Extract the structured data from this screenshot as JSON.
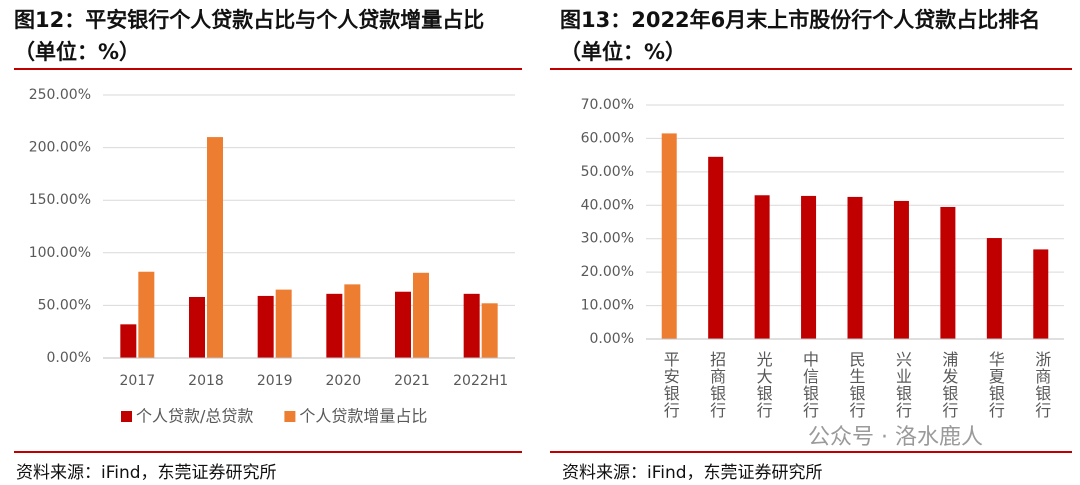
{
  "chart_data": [
    {
      "type": "bar",
      "title": "图12：平安银行个人贷款占比与个人贷款增量占比（单位：%）",
      "categories": [
        "2017",
        "2018",
        "2019",
        "2020",
        "2021",
        "2022H1"
      ],
      "series": [
        {
          "name": "个人贷款/总贷款",
          "color": "#c00000",
          "values": [
            32,
            58,
            59,
            61,
            63,
            61
          ]
        },
        {
          "name": "个人贷款增量占比",
          "color": "#ed7d31",
          "values": [
            82,
            210,
            65,
            70,
            81,
            52
          ]
        }
      ],
      "ylim": [
        0,
        250
      ],
      "yticks": [
        {
          "value": 0,
          "label": "0.00%"
        },
        {
          "value": 50,
          "label": "50.00%"
        },
        {
          "value": 100,
          "label": "100.00%"
        },
        {
          "value": 150,
          "label": "150.00%"
        },
        {
          "value": 200,
          "label": "200.00%"
        },
        {
          "value": 250,
          "label": "250.00%"
        }
      ],
      "grid": true,
      "legend": "bottom",
      "source": "资料来源：iFind，东莞证券研究所"
    },
    {
      "type": "bar",
      "title": "图13：2022年6月末上市股份行个人贷款占比排名（单位：%）",
      "categories": [
        "平安银行",
        "招商银行",
        "光大银行",
        "中信银行",
        "民生银行",
        "兴业银行",
        "浦发银行",
        "华夏银行",
        "浙商银行"
      ],
      "values": [
        61.5,
        54.5,
        43,
        42.8,
        42.5,
        41.3,
        39.5,
        30.2,
        26.8
      ],
      "colors": [
        "#ed7d31",
        "#c00000",
        "#c00000",
        "#c00000",
        "#c00000",
        "#c00000",
        "#c00000",
        "#c00000",
        "#c00000"
      ],
      "ylim": [
        0,
        70
      ],
      "yticks": [
        {
          "value": 0,
          "label": "0.00%"
        },
        {
          "value": 10,
          "label": "10.00%"
        },
        {
          "value": 20,
          "label": "20.00%"
        },
        {
          "value": 30,
          "label": "30.00%"
        },
        {
          "value": 40,
          "label": "40.00%"
        },
        {
          "value": 50,
          "label": "50.00%"
        },
        {
          "value": 60,
          "label": "60.00%"
        },
        {
          "value": 70,
          "label": "70.00%"
        }
      ],
      "grid": true,
      "annotation": "公众号 · 洛水鹿人",
      "source": "资料来源：iFind，东莞证券研究所"
    }
  ]
}
